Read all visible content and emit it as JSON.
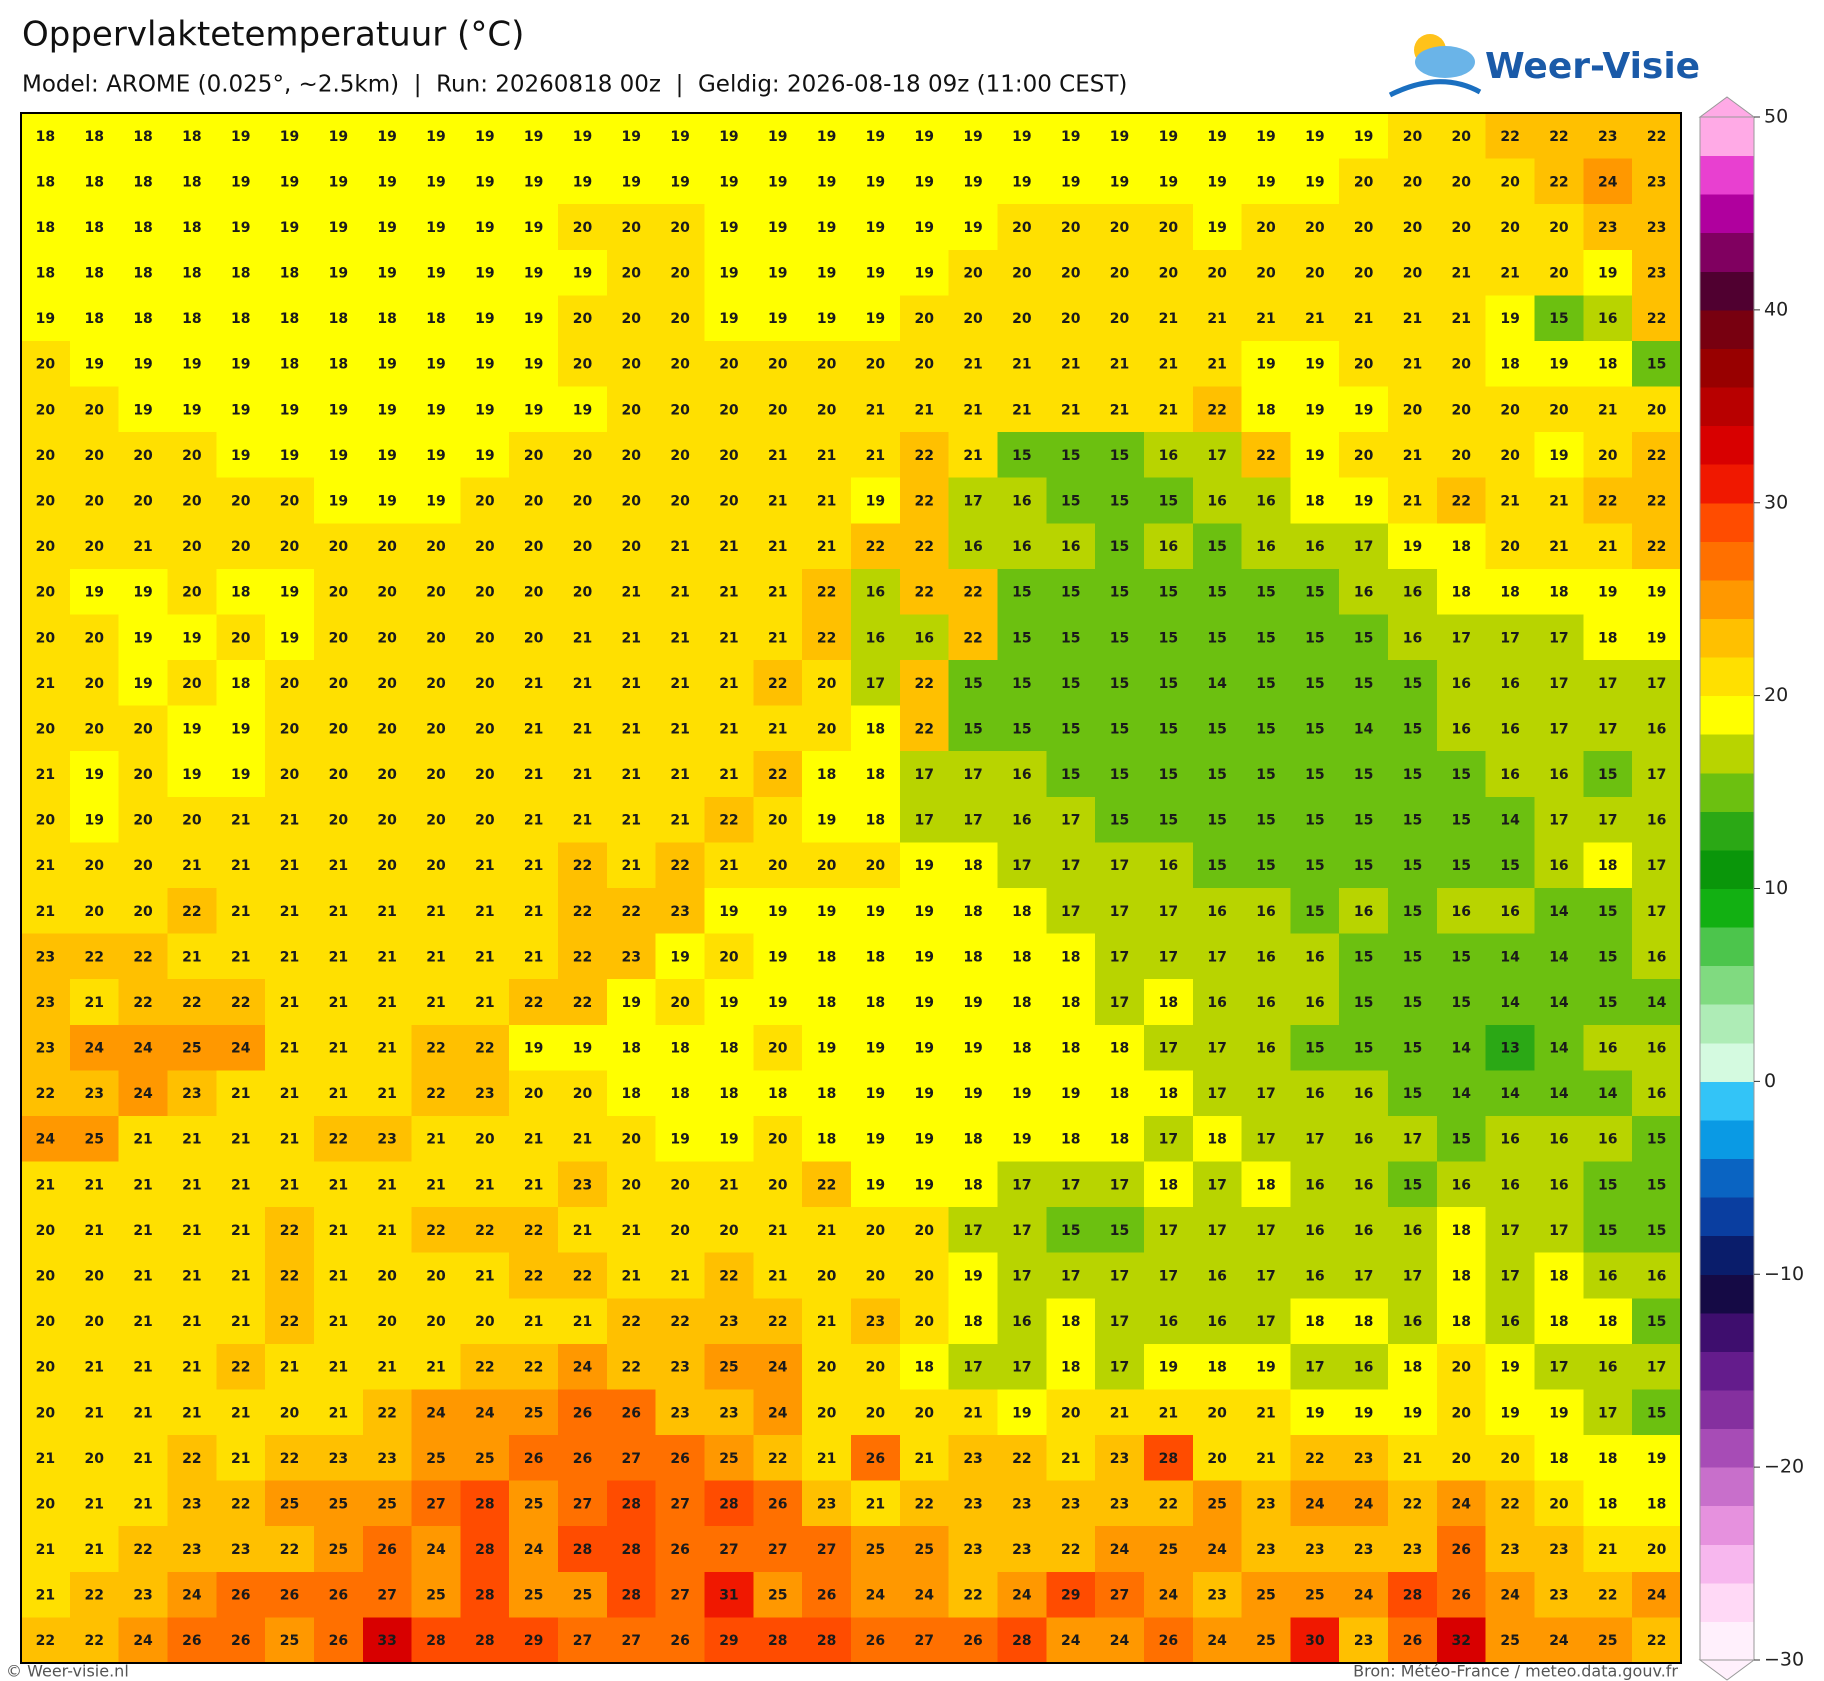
{
  "header": {
    "title": "Oppervlaktetemperatuur (°C)",
    "subtitle": "Model: AROME (0.025°, ~2.5km)  |  Run: 20260818 00z  |  Geldig: 2026-08-18 09z (11:00 CEST)",
    "logo": "Weer-Visie"
  },
  "map": {
    "rows": [
      [
        18,
        18,
        18,
        18,
        19,
        19,
        19,
        19,
        19,
        19,
        19,
        19,
        19,
        19,
        19,
        19,
        19,
        19,
        19,
        19,
        19,
        19,
        19,
        19,
        19,
        19,
        19,
        19,
        20,
        20,
        22,
        22,
        23,
        22
      ],
      [
        18,
        18,
        18,
        18,
        19,
        19,
        19,
        19,
        19,
        19,
        19,
        19,
        19,
        19,
        19,
        19,
        19,
        19,
        19,
        19,
        19,
        19,
        19,
        19,
        19,
        19,
        19,
        20,
        20,
        20,
        20,
        22,
        24,
        23
      ],
      [
        18,
        18,
        18,
        18,
        19,
        19,
        19,
        19,
        19,
        19,
        19,
        20,
        20,
        20,
        19,
        19,
        19,
        19,
        19,
        19,
        20,
        20,
        20,
        20,
        19,
        20,
        20,
        20,
        20,
        20,
        20,
        20,
        23,
        23
      ],
      [
        18,
        18,
        18,
        18,
        18,
        18,
        19,
        19,
        19,
        19,
        19,
        19,
        20,
        20,
        19,
        19,
        19,
        19,
        19,
        20,
        20,
        20,
        20,
        20,
        20,
        20,
        20,
        20,
        20,
        21,
        21,
        20,
        19,
        23
      ],
      [
        19,
        18,
        18,
        18,
        18,
        18,
        18,
        18,
        18,
        19,
        19,
        20,
        20,
        20,
        19,
        19,
        19,
        19,
        20,
        20,
        20,
        20,
        20,
        21,
        21,
        21,
        21,
        21,
        21,
        21,
        19,
        15,
        16,
        22
      ],
      [
        20,
        19,
        19,
        19,
        19,
        18,
        18,
        19,
        19,
        19,
        19,
        20,
        20,
        20,
        20,
        20,
        20,
        20,
        20,
        21,
        21,
        21,
        21,
        21,
        21,
        19,
        19,
        20,
        21,
        20,
        18,
        19,
        18,
        15
      ],
      [
        20,
        20,
        19,
        19,
        19,
        19,
        19,
        19,
        19,
        19,
        19,
        19,
        20,
        20,
        20,
        20,
        20,
        21,
        21,
        21,
        21,
        21,
        21,
        21,
        22,
        18,
        19,
        19,
        20,
        20,
        20,
        20,
        21,
        20
      ],
      [
        20,
        20,
        20,
        20,
        19,
        19,
        19,
        19,
        19,
        19,
        20,
        20,
        20,
        20,
        20,
        21,
        21,
        21,
        22,
        21,
        15,
        15,
        15,
        16,
        17,
        22,
        19,
        20,
        21,
        20,
        20,
        19,
        20,
        22
      ],
      [
        20,
        20,
        20,
        20,
        20,
        20,
        19,
        19,
        19,
        20,
        20,
        20,
        20,
        20,
        20,
        21,
        21,
        19,
        22,
        17,
        16,
        15,
        15,
        15,
        16,
        16,
        18,
        19,
        21,
        22,
        21,
        21,
        22,
        22
      ],
      [
        20,
        20,
        21,
        20,
        20,
        20,
        20,
        20,
        20,
        20,
        20,
        20,
        20,
        21,
        21,
        21,
        21,
        22,
        22,
        16,
        16,
        16,
        15,
        16,
        15,
        16,
        16,
        17,
        19,
        18,
        20,
        21,
        21,
        22
      ],
      [
        20,
        19,
        19,
        20,
        18,
        19,
        20,
        20,
        20,
        20,
        20,
        20,
        21,
        21,
        21,
        21,
        22,
        16,
        22,
        22,
        15,
        15,
        15,
        15,
        15,
        15,
        15,
        16,
        16,
        18,
        18,
        18,
        19,
        19
      ],
      [
        20,
        20,
        19,
        19,
        20,
        19,
        20,
        20,
        20,
        20,
        20,
        21,
        21,
        21,
        21,
        21,
        22,
        16,
        16,
        22,
        15,
        15,
        15,
        15,
        15,
        15,
        15,
        15,
        16,
        17,
        17,
        17,
        18,
        19
      ],
      [
        21,
        20,
        19,
        20,
        18,
        20,
        20,
        20,
        20,
        20,
        21,
        21,
        21,
        21,
        21,
        22,
        20,
        17,
        22,
        15,
        15,
        15,
        15,
        15,
        14,
        15,
        15,
        15,
        15,
        16,
        16,
        17,
        17,
        17
      ],
      [
        20,
        20,
        20,
        19,
        19,
        20,
        20,
        20,
        20,
        20,
        21,
        21,
        21,
        21,
        21,
        21,
        20,
        18,
        22,
        15,
        15,
        15,
        15,
        15,
        15,
        15,
        15,
        14,
        15,
        16,
        16,
        17,
        17,
        16
      ],
      [
        21,
        19,
        20,
        19,
        19,
        20,
        20,
        20,
        20,
        20,
        21,
        21,
        21,
        21,
        21,
        22,
        18,
        18,
        17,
        17,
        16,
        15,
        15,
        15,
        15,
        15,
        15,
        15,
        15,
        15,
        16,
        16,
        15,
        17
      ],
      [
        20,
        19,
        20,
        20,
        21,
        21,
        20,
        20,
        20,
        20,
        21,
        21,
        21,
        21,
        22,
        20,
        19,
        18,
        17,
        17,
        16,
        17,
        15,
        15,
        15,
        15,
        15,
        15,
        15,
        15,
        14,
        17,
        17,
        16
      ],
      [
        21,
        20,
        20,
        21,
        21,
        21,
        21,
        20,
        20,
        21,
        21,
        22,
        21,
        22,
        21,
        20,
        20,
        20,
        19,
        18,
        17,
        17,
        17,
        16,
        15,
        15,
        15,
        15,
        15,
        15,
        15,
        16,
        18,
        17
      ],
      [
        21,
        20,
        20,
        22,
        21,
        21,
        21,
        21,
        21,
        21,
        21,
        22,
        22,
        23,
        19,
        19,
        19,
        19,
        19,
        18,
        18,
        17,
        17,
        17,
        16,
        16,
        15,
        16,
        15,
        16,
        16,
        14,
        15,
        17
      ],
      [
        23,
        22,
        22,
        21,
        21,
        21,
        21,
        21,
        21,
        21,
        21,
        22,
        23,
        19,
        20,
        19,
        18,
        18,
        19,
        18,
        18,
        18,
        17,
        17,
        17,
        16,
        16,
        15,
        15,
        15,
        14,
        14,
        15,
        16
      ],
      [
        23,
        21,
        22,
        22,
        22,
        21,
        21,
        21,
        21,
        21,
        22,
        22,
        19,
        20,
        19,
        19,
        18,
        18,
        19,
        19,
        18,
        18,
        17,
        18,
        16,
        16,
        16,
        15,
        15,
        15,
        14,
        14,
        15,
        14
      ],
      [
        23,
        24,
        24,
        25,
        24,
        21,
        21,
        21,
        22,
        22,
        19,
        19,
        18,
        18,
        18,
        20,
        19,
        19,
        19,
        19,
        18,
        18,
        18,
        17,
        17,
        16,
        15,
        15,
        15,
        14,
        13,
        14,
        16,
        16
      ],
      [
        22,
        23,
        24,
        23,
        21,
        21,
        21,
        21,
        22,
        23,
        20,
        20,
        18,
        18,
        18,
        18,
        18,
        19,
        19,
        19,
        19,
        19,
        18,
        18,
        17,
        17,
        16,
        16,
        15,
        14,
        14,
        14,
        14,
        16
      ],
      [
        24,
        25,
        21,
        21,
        21,
        21,
        22,
        23,
        21,
        20,
        21,
        21,
        20,
        19,
        19,
        20,
        18,
        19,
        19,
        18,
        19,
        18,
        18,
        17,
        18,
        17,
        17,
        16,
        17,
        15,
        16,
        16,
        16,
        15
      ],
      [
        21,
        21,
        21,
        21,
        21,
        21,
        21,
        21,
        21,
        21,
        21,
        23,
        20,
        20,
        21,
        20,
        22,
        19,
        19,
        18,
        17,
        17,
        17,
        18,
        17,
        18,
        16,
        16,
        15,
        16,
        16,
        16,
        15,
        15
      ],
      [
        20,
        21,
        21,
        21,
        21,
        22,
        21,
        21,
        22,
        22,
        22,
        21,
        21,
        20,
        20,
        21,
        21,
        20,
        20,
        17,
        17,
        15,
        15,
        17,
        17,
        17,
        16,
        16,
        16,
        18,
        17,
        17,
        15,
        15
      ],
      [
        20,
        20,
        21,
        21,
        21,
        22,
        21,
        20,
        20,
        21,
        22,
        22,
        21,
        21,
        22,
        21,
        20,
        20,
        20,
        19,
        17,
        17,
        17,
        17,
        16,
        17,
        16,
        17,
        17,
        18,
        17,
        18,
        16,
        16
      ],
      [
        20,
        20,
        21,
        21,
        21,
        22,
        21,
        20,
        20,
        20,
        21,
        21,
        22,
        22,
        23,
        22,
        21,
        23,
        20,
        18,
        16,
        18,
        17,
        16,
        16,
        17,
        18,
        18,
        16,
        18,
        16,
        18,
        18,
        15
      ],
      [
        20,
        21,
        21,
        21,
        22,
        21,
        21,
        21,
        21,
        22,
        22,
        24,
        22,
        23,
        25,
        24,
        20,
        20,
        18,
        17,
        17,
        18,
        17,
        19,
        18,
        19,
        17,
        16,
        18,
        20,
        19,
        17,
        16,
        17
      ],
      [
        20,
        21,
        21,
        21,
        21,
        20,
        21,
        22,
        24,
        24,
        25,
        26,
        26,
        23,
        23,
        24,
        20,
        20,
        20,
        21,
        19,
        20,
        21,
        21,
        20,
        21,
        19,
        19,
        19,
        20,
        19,
        19,
        17,
        15
      ],
      [
        21,
        20,
        21,
        22,
        21,
        22,
        23,
        23,
        25,
        25,
        26,
        26,
        27,
        26,
        25,
        22,
        21,
        26,
        21,
        23,
        22,
        21,
        23,
        28,
        20,
        21,
        22,
        23,
        21,
        20,
        20,
        18,
        18,
        19
      ],
      [
        20,
        21,
        21,
        23,
        22,
        25,
        25,
        25,
        27,
        28,
        25,
        27,
        28,
        27,
        28,
        26,
        23,
        21,
        22,
        23,
        23,
        23,
        23,
        22,
        25,
        23,
        24,
        24,
        22,
        24,
        22,
        20,
        18,
        18
      ],
      [
        21,
        21,
        22,
        23,
        23,
        22,
        25,
        26,
        24,
        28,
        24,
        28,
        28,
        26,
        27,
        27,
        27,
        25,
        25,
        23,
        23,
        22,
        24,
        25,
        24,
        23,
        23,
        23,
        23,
        26,
        23,
        23,
        21,
        20
      ],
      [
        21,
        22,
        23,
        24,
        26,
        26,
        26,
        27,
        25,
        28,
        25,
        25,
        28,
        27,
        31,
        25,
        26,
        24,
        24,
        22,
        24,
        29,
        27,
        24,
        23,
        25,
        25,
        24,
        28,
        26,
        24,
        23,
        22,
        24
      ],
      [
        22,
        22,
        24,
        26,
        26,
        25,
        26,
        33,
        28,
        28,
        29,
        27,
        27,
        26,
        29,
        28,
        28,
        26,
        27,
        26,
        28,
        24,
        24,
        26,
        24,
        25,
        30,
        23,
        26,
        32,
        25,
        24,
        25,
        22
      ]
    ]
  },
  "colorbar": {
    "lim": [
      -30,
      50
    ],
    "ticks": [
      {
        "value": -30,
        "label": "−30"
      },
      {
        "value": -20,
        "label": "−20"
      },
      {
        "value": -10,
        "label": "−10"
      },
      0,
      10,
      20,
      30,
      40,
      50
    ],
    "colors": [
      "#fff0fc",
      "#ffd9f6",
      "#f7b7ee",
      "#e691de",
      "#c86fcb",
      "#a74cb6",
      "#85309f",
      "#641c8c",
      "#3e0e6e",
      "#150a45",
      "#0a1d6b",
      "#0a3ea0",
      "#0a64c2",
      "#0a9ae4",
      "#33c4f7",
      "#d4fae0",
      "#aeecb6",
      "#80da80",
      "#4cc54c",
      "#12b012",
      "#0a960a",
      "#2ba815",
      "#6cc010",
      "#b8d400",
      "#ffff00",
      "#ffe000",
      "#ffc000",
      "#ff9800",
      "#ff7000",
      "#ff4c00",
      "#f01800",
      "#d80000",
      "#b80000",
      "#980000",
      "#780010",
      "#500030",
      "#800060",
      "#b0009e",
      "#e840d0",
      "#ffaae6"
    ]
  },
  "footer": {
    "left": "© Weer-visie.nl",
    "right": "Bron: Météo-France / meteo.data.gouv.fr"
  }
}
